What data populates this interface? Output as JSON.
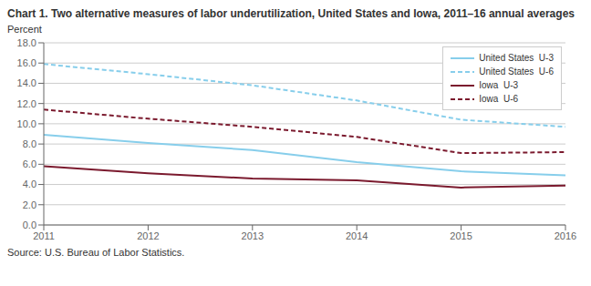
{
  "chart_data": {
    "type": "line",
    "title": "Chart 1. Two alternative measures of labor underutilization, United States and Iowa, 2011–16 annual averages",
    "ylabel": "Percent",
    "annotations": [
      "Source: U.S. Bureau of Labor Statistics."
    ],
    "x": [
      2011,
      2012,
      2013,
      2014,
      2015,
      2016
    ],
    "xlim": [
      2011,
      2016
    ],
    "xticks": [
      2011,
      2012,
      2013,
      2014,
      2015,
      2016
    ],
    "ylim": [
      0.0,
      18.0
    ],
    "yticks": [
      {
        "value": 0,
        "label": "0.0"
      },
      {
        "value": 2,
        "label": "2.0"
      },
      {
        "value": 4,
        "label": "4.0"
      },
      {
        "value": 6,
        "label": "6.0"
      },
      {
        "value": 8,
        "label": "8.0"
      },
      {
        "value": 10,
        "label": "10.0"
      },
      {
        "value": 12,
        "label": "12.0"
      },
      {
        "value": 14,
        "label": "14.0"
      },
      {
        "value": 16,
        "label": "16.0"
      },
      {
        "value": 18,
        "label": "18.0"
      }
    ],
    "grid": true,
    "legend": "upper right",
    "series": [
      {
        "name": "United States  U-3",
        "color": "#87CEEB",
        "line_style": "solid",
        "values": [
          8.9,
          8.1,
          7.4,
          6.2,
          5.3,
          4.9
        ]
      },
      {
        "name": "United States  U-6",
        "color": "#87CEEB",
        "line_style": "dashed",
        "values": [
          15.9,
          14.9,
          13.8,
          12.3,
          10.4,
          9.7
        ]
      },
      {
        "name": "Iowa  U-3",
        "color": "#7B1A2E",
        "line_style": "solid",
        "values": [
          5.8,
          5.1,
          4.6,
          4.4,
          3.7,
          3.9
        ]
      },
      {
        "name": "Iowa  U-6",
        "color": "#7B1A2E",
        "line_style": "dashed",
        "values": [
          11.4,
          10.5,
          9.7,
          8.7,
          7.1,
          7.2
        ]
      }
    ]
  }
}
